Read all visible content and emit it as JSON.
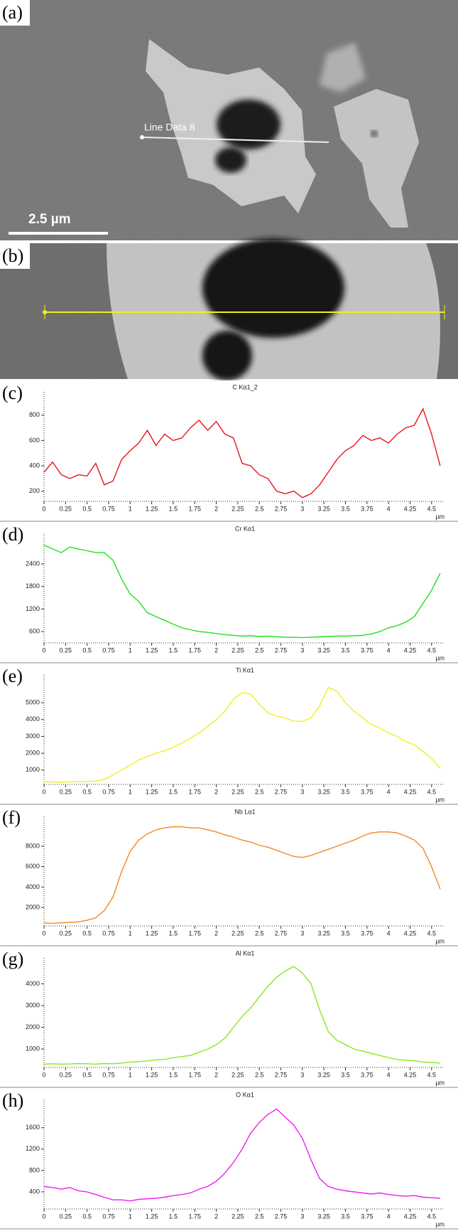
{
  "panels": [
    {
      "label": "(a)",
      "annotation": "Line Data 8",
      "scale_bar": "2.5 µm"
    },
    {
      "label": "(b)"
    }
  ],
  "chart_data": [
    {
      "type": "line",
      "label": "(c)",
      "title": "C Kα1_2",
      "x_unit": "µm",
      "color": "#e8141c",
      "x": [
        0,
        0.1,
        0.2,
        0.3,
        0.4,
        0.5,
        0.6,
        0.7,
        0.8,
        0.9,
        1.0,
        1.1,
        1.2,
        1.3,
        1.4,
        1.5,
        1.6,
        1.7,
        1.8,
        1.9,
        2.0,
        2.1,
        2.2,
        2.3,
        2.4,
        2.5,
        2.6,
        2.7,
        2.8,
        2.9,
        3.0,
        3.1,
        3.2,
        3.3,
        3.4,
        3.5,
        3.6,
        3.7,
        3.8,
        3.9,
        4.0,
        4.1,
        4.2,
        4.3,
        4.4,
        4.5,
        4.6
      ],
      "values": [
        350,
        430,
        330,
        300,
        330,
        320,
        420,
        250,
        280,
        450,
        520,
        580,
        680,
        560,
        650,
        600,
        620,
        700,
        760,
        680,
        750,
        650,
        620,
        420,
        400,
        330,
        300,
        200,
        180,
        200,
        150,
        180,
        250,
        350,
        450,
        520,
        560,
        640,
        600,
        620,
        580,
        650,
        700,
        720,
        850,
        650,
        400
      ],
      "xlim": [
        0,
        4.65
      ],
      "xticks": [
        0,
        0.25,
        0.5,
        0.75,
        1,
        1.25,
        1.5,
        1.75,
        2,
        2.25,
        2.5,
        2.75,
        3,
        3.25,
        3.5,
        3.75,
        4,
        4.25,
        4.5
      ],
      "ylim": [
        120,
        950
      ],
      "yticks": [
        200,
        400,
        600,
        800
      ]
    },
    {
      "type": "line",
      "label": "(d)",
      "title": "Cr Kα1",
      "x_unit": "µm",
      "color": "#22e01a",
      "x": [
        0,
        0.1,
        0.2,
        0.3,
        0.4,
        0.5,
        0.6,
        0.7,
        0.8,
        0.9,
        1.0,
        1.1,
        1.2,
        1.3,
        1.4,
        1.5,
        1.6,
        1.7,
        1.8,
        1.9,
        2.0,
        2.1,
        2.2,
        2.3,
        2.4,
        2.5,
        2.6,
        2.7,
        2.8,
        2.9,
        3.0,
        3.1,
        3.2,
        3.3,
        3.4,
        3.5,
        3.6,
        3.7,
        3.8,
        3.9,
        4.0,
        4.1,
        4.2,
        4.3,
        4.4,
        4.5,
        4.6
      ],
      "values": [
        2900,
        2800,
        2700,
        2850,
        2800,
        2750,
        2700,
        2700,
        2500,
        2000,
        1600,
        1400,
        1100,
        1000,
        900,
        800,
        700,
        650,
        600,
        580,
        550,
        520,
        500,
        480,
        490,
        470,
        480,
        460,
        450,
        450,
        440,
        450,
        460,
        470,
        480,
        480,
        490,
        500,
        540,
        600,
        700,
        760,
        850,
        1000,
        1350,
        1700,
        2150
      ],
      "xlim": [
        0,
        4.65
      ],
      "xticks": [
        0,
        0.25,
        0.5,
        0.75,
        1,
        1.25,
        1.5,
        1.75,
        2,
        2.25,
        2.5,
        2.75,
        3,
        3.25,
        3.5,
        3.75,
        4,
        4.25,
        4.5
      ],
      "ylim": [
        300,
        3100
      ],
      "yticks": [
        600,
        1200,
        1800,
        2400
      ]
    },
    {
      "type": "line",
      "label": "(e)",
      "title": "Ti Kα1",
      "x_unit": "µm",
      "color": "#f0f01e",
      "x": [
        0,
        0.1,
        0.2,
        0.3,
        0.4,
        0.5,
        0.6,
        0.7,
        0.8,
        0.9,
        1.0,
        1.1,
        1.2,
        1.3,
        1.4,
        1.5,
        1.6,
        1.7,
        1.8,
        1.9,
        2.0,
        2.1,
        2.2,
        2.3,
        2.4,
        2.5,
        2.6,
        2.7,
        2.8,
        2.9,
        3.0,
        3.1,
        3.2,
        3.3,
        3.4,
        3.5,
        3.6,
        3.7,
        3.8,
        3.9,
        4.0,
        4.1,
        4.2,
        4.3,
        4.4,
        4.5,
        4.6
      ],
      "values": [
        300,
        300,
        280,
        300,
        310,
        320,
        350,
        450,
        700,
        1000,
        1300,
        1600,
        1800,
        2000,
        2150,
        2350,
        2600,
        2900,
        3200,
        3600,
        4000,
        4500,
        5200,
        5600,
        5500,
        4900,
        4400,
        4200,
        4100,
        3900,
        3900,
        4100,
        4800,
        5900,
        5700,
        5000,
        4500,
        4100,
        3700,
        3500,
        3200,
        3000,
        2700,
        2500,
        2100,
        1700,
        1100
      ],
      "xlim": [
        0,
        4.65
      ],
      "xticks": [
        0,
        0.25,
        0.5,
        0.75,
        1,
        1.25,
        1.5,
        1.75,
        2,
        2.25,
        2.5,
        2.75,
        3,
        3.25,
        3.5,
        3.75,
        4,
        4.25,
        4.5
      ],
      "ylim": [
        150,
        6400
      ],
      "yticks": [
        1000,
        2000,
        3000,
        4000,
        5000
      ]
    },
    {
      "type": "line",
      "label": "(f)",
      "title": "Nb Lα1",
      "x_unit": "µm",
      "color": "#f08a1e",
      "x": [
        0,
        0.1,
        0.2,
        0.3,
        0.4,
        0.5,
        0.6,
        0.7,
        0.8,
        0.9,
        1.0,
        1.1,
        1.2,
        1.3,
        1.4,
        1.5,
        1.6,
        1.7,
        1.8,
        1.9,
        2.0,
        2.1,
        2.2,
        2.3,
        2.4,
        2.5,
        2.6,
        2.7,
        2.8,
        2.9,
        3.0,
        3.1,
        3.2,
        3.3,
        3.4,
        3.5,
        3.6,
        3.7,
        3.8,
        3.9,
        4.0,
        4.1,
        4.2,
        4.3,
        4.4,
        4.5,
        4.6
      ],
      "values": [
        500,
        450,
        500,
        550,
        600,
        750,
        1000,
        1700,
        3000,
        5500,
        7500,
        8600,
        9200,
        9600,
        9800,
        9900,
        9900,
        9800,
        9800,
        9600,
        9400,
        9100,
        8900,
        8600,
        8400,
        8100,
        7900,
        7600,
        7300,
        7000,
        6900,
        7100,
        7400,
        7700,
        8000,
        8300,
        8600,
        9000,
        9300,
        9400,
        9400,
        9300,
        9000,
        8600,
        7800,
        6000,
        3800
      ],
      "xlim": [
        0,
        4.65
      ],
      "xticks": [
        0,
        0.25,
        0.5,
        0.75,
        1,
        1.25,
        1.5,
        1.75,
        2,
        2.25,
        2.5,
        2.75,
        3,
        3.25,
        3.5,
        3.75,
        4,
        4.25,
        4.5
      ],
      "ylim": [
        200,
        10500
      ],
      "yticks": [
        2000,
        4000,
        6000,
        8000
      ]
    },
    {
      "type": "line",
      "label": "(g)",
      "title": "Al Kα1",
      "x_unit": "µm",
      "color": "#8ae81e",
      "x": [
        0,
        0.1,
        0.2,
        0.3,
        0.4,
        0.5,
        0.6,
        0.7,
        0.8,
        0.9,
        1.0,
        1.1,
        1.2,
        1.3,
        1.4,
        1.5,
        1.6,
        1.7,
        1.8,
        1.9,
        2.0,
        2.1,
        2.2,
        2.3,
        2.4,
        2.5,
        2.6,
        2.7,
        2.8,
        2.9,
        3.0,
        3.1,
        3.2,
        3.3,
        3.4,
        3.5,
        3.6,
        3.7,
        3.8,
        3.9,
        4.0,
        4.1,
        4.2,
        4.3,
        4.4,
        4.5,
        4.6
      ],
      "values": [
        300,
        320,
        300,
        310,
        330,
        320,
        300,
        330,
        320,
        350,
        400,
        420,
        450,
        500,
        520,
        600,
        650,
        700,
        850,
        1000,
        1200,
        1500,
        2000,
        2500,
        2900,
        3400,
        3900,
        4300,
        4600,
        4800,
        4500,
        4000,
        2800,
        1800,
        1400,
        1200,
        1000,
        900,
        800,
        700,
        600,
        520,
        480,
        450,
        400,
        380,
        350
      ],
      "xlim": [
        0,
        4.65
      ],
      "xticks": [
        0,
        0.25,
        0.5,
        0.75,
        1,
        1.25,
        1.5,
        1.75,
        2,
        2.25,
        2.5,
        2.75,
        3,
        3.25,
        3.5,
        3.75,
        4,
        4.25,
        4.5
      ],
      "ylim": [
        150,
        5000
      ],
      "yticks": [
        1000,
        2000,
        3000,
        4000
      ]
    },
    {
      "type": "line",
      "label": "(h)",
      "title": "O Kα1",
      "x_unit": "µm",
      "color": "#f01ef0",
      "x": [
        0,
        0.1,
        0.2,
        0.3,
        0.4,
        0.5,
        0.6,
        0.7,
        0.8,
        0.9,
        1.0,
        1.1,
        1.2,
        1.3,
        1.4,
        1.5,
        1.6,
        1.7,
        1.8,
        1.9,
        2.0,
        2.1,
        2.2,
        2.3,
        2.4,
        2.5,
        2.6,
        2.7,
        2.8,
        2.9,
        3.0,
        3.1,
        3.2,
        3.3,
        3.4,
        3.5,
        3.6,
        3.7,
        3.8,
        3.9,
        4.0,
        4.1,
        4.2,
        4.3,
        4.4,
        4.5,
        4.6
      ],
      "values": [
        500,
        480,
        450,
        480,
        420,
        400,
        350,
        300,
        250,
        250,
        230,
        260,
        270,
        280,
        300,
        330,
        350,
        380,
        450,
        500,
        600,
        750,
        950,
        1200,
        1500,
        1700,
        1850,
        1950,
        1800,
        1650,
        1400,
        1000,
        650,
        500,
        450,
        420,
        400,
        380,
        360,
        380,
        350,
        330,
        320,
        330,
        300,
        290,
        280
      ],
      "xlim": [
        0,
        4.65
      ],
      "xticks": [
        0,
        0.25,
        0.5,
        0.75,
        1,
        1.25,
        1.5,
        1.75,
        2,
        2.25,
        2.5,
        2.75,
        3,
        3.25,
        3.5,
        3.75,
        4,
        4.25,
        4.5
      ],
      "ylim": [
        80,
        2050
      ],
      "yticks": [
        400,
        800,
        1200,
        1600
      ]
    }
  ]
}
